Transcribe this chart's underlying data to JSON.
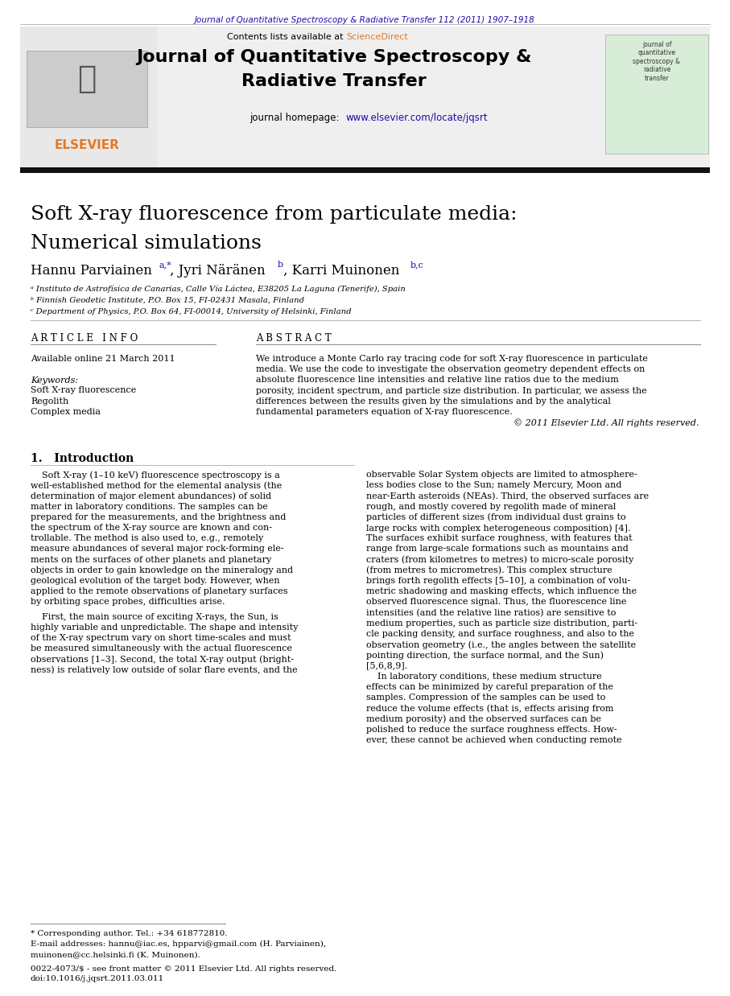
{
  "top_journal_ref": "Journal of Quantitative Spectroscopy & Radiative Transfer 112 (2011) 1907–1918",
  "header_contents": "Contents lists available at ScienceDirect",
  "header_homepage_url": "www.elsevier.com/locate/jqsrt",
  "article_title_line1": "Soft X-ray fluorescence from particulate media:",
  "article_title_line2": "Numerical simulations",
  "affil_a": "ᵃ Instituto de Astrofísica de Canarias, Calle Vía Láctea, E38205 La Laguna (Tenerife), Spain",
  "affil_b": "ᵇ Finnish Geodetic Institute, P.O. Box 15, FI-02431 Masala, Finland",
  "affil_c": "ᶜ Department of Physics, P.O. Box 64, FI-00014, University of Helsinki, Finland",
  "article_info_header": "A R T I C L E   I N F O",
  "available_online": "Available online 21 March 2011",
  "keywords_header": "Keywords:",
  "keywords": [
    "Soft X-ray fluorescence",
    "Regolith",
    "Complex media"
  ],
  "abstract_header": "A B S T R A C T",
  "section1_title": "1.   Introduction",
  "footnote_star": "* Corresponding author. Tel.: +34 618772810.",
  "footnote_email1": "E-mail addresses: hannu@iac.es, hpparvi@gmail.com (H. Parviainen),",
  "footnote_email2": "muinonen@cc.helsinki.fi (K. Muinonen).",
  "footnote_issn": "0022-4073/$ - see front matter © 2011 Elsevier Ltd. All rights reserved.",
  "footnote_doi": "doi:10.1016/j.jqsrt.2011.03.011",
  "bg_color": "#ffffff",
  "header_bg_color": "#efefef",
  "green_box_color": "#d8edd8",
  "blue_link_color": "#1a0dab",
  "sciencedirect_color": "#e87722",
  "orange_elsevier_color": "#e87722",
  "black_color": "#000000",
  "gray_line_color": "#888888",
  "dark_bar_color": "#111111",
  "intro1_lines": [
    "    Soft X-ray (1–10 keV) fluorescence spectroscopy is a",
    "well-established method for the elemental analysis (the",
    "determination of major element abundances) of solid",
    "matter in laboratory conditions. The samples can be",
    "prepared for the measurements, and the brightness and",
    "the spectrum of the X-ray source are known and con-",
    "trollable. The method is also used to, e.g., remotely",
    "measure abundances of several major rock-forming ele-",
    "ments on the surfaces of other planets and planetary",
    "objects in order to gain knowledge on the mineralogy and",
    "geological evolution of the target body. However, when",
    "applied to the remote observations of planetary surfaces",
    "by orbiting space probes, difficulties arise."
  ],
  "intro2_lines": [
    "    First, the main source of exciting X-rays, the Sun, is",
    "highly variable and unpredictable. The shape and intensity",
    "of the X-ray spectrum vary on short time-scales and must",
    "be measured simultaneously with the actual fluorescence",
    "observations [1–3]. Second, the total X-ray output (bright-",
    "ness) is relatively low outside of solar flare events, and the"
  ],
  "right_col_lines": [
    "observable Solar System objects are limited to atmosphere-",
    "less bodies close to the Sun; namely Mercury, Moon and",
    "near-Earth asteroids (NEAs). Third, the observed surfaces are",
    "rough, and mostly covered by regolith made of mineral",
    "particles of different sizes (from individual dust grains to",
    "large rocks with complex heterogeneous composition) [4].",
    "The surfaces exhibit surface roughness, with features that",
    "range from large-scale formations such as mountains and",
    "craters (from kilometres to metres) to micro-scale porosity",
    "(from metres to micrometres). This complex structure",
    "brings forth regolith effects [5–10], a combination of volu-",
    "metric shadowing and masking effects, which influence the",
    "observed fluorescence signal. Thus, the fluorescence line",
    "intensities (and the relative line ratios) are sensitive to",
    "medium properties, such as particle size distribution, parti-",
    "cle packing density, and surface roughness, and also to the",
    "observation geometry (i.e., the angles between the satellite",
    "pointing direction, the surface normal, and the Sun)",
    "[5,6,8,9].",
    "    In laboratory conditions, these medium structure",
    "effects can be minimized by careful preparation of the",
    "samples. Compression of the samples can be used to",
    "reduce the volume effects (that is, effects arising from",
    "medium porosity) and the observed surfaces can be",
    "polished to reduce the surface roughness effects. How-",
    "ever, these cannot be achieved when conducting remote"
  ],
  "abstract_lines": [
    "We introduce a Monte Carlo ray tracing code for soft X-ray fluorescence in particulate",
    "media. We use the code to investigate the observation geometry dependent effects on",
    "absolute fluorescence line intensities and relative line ratios due to the medium",
    "porosity, incident spectrum, and particle size distribution. In particular, we assess the",
    "differences between the results given by the simulations and by the analytical",
    "fundamental parameters equation of X-ray fluorescence."
  ],
  "abstract_copyright": "© 2011 Elsevier Ltd. All rights reserved."
}
